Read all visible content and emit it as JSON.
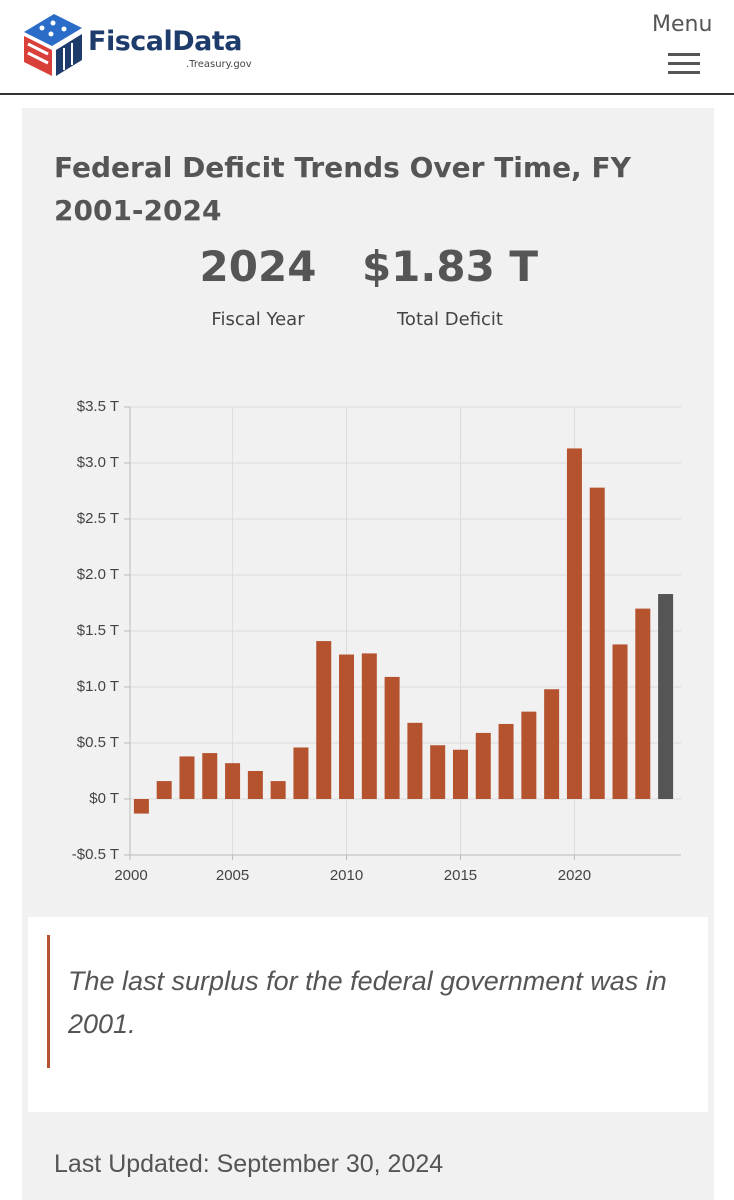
{
  "header": {
    "logo_name": "FiscalData",
    "logo_domain": ".Treasury.gov",
    "menu": "Menu"
  },
  "card": {
    "title": "Federal Deficit Trends Over Time, FY 2001-2024",
    "stats": [
      {
        "value": "2024",
        "label": "Fiscal Year"
      },
      {
        "value": "$1.83 T",
        "label": "Total Deficit"
      }
    ]
  },
  "chart_data": {
    "type": "bar",
    "x": [
      2001,
      2002,
      2003,
      2004,
      2005,
      2006,
      2007,
      2008,
      2009,
      2010,
      2011,
      2012,
      2013,
      2014,
      2015,
      2016,
      2017,
      2018,
      2019,
      2020,
      2021,
      2022,
      2023,
      2024
    ],
    "values": [
      -0.13,
      0.16,
      0.38,
      0.41,
      0.32,
      0.25,
      0.16,
      0.46,
      1.41,
      1.29,
      1.3,
      1.09,
      0.68,
      0.48,
      0.44,
      0.59,
      0.67,
      0.78,
      0.98,
      3.13,
      2.78,
      1.38,
      1.7,
      1.83
    ],
    "colors": [
      "#b5532f",
      "#b5532f",
      "#b5532f",
      "#b5532f",
      "#b5532f",
      "#b5532f",
      "#b5532f",
      "#b5532f",
      "#b5532f",
      "#b5532f",
      "#b5532f",
      "#b5532f",
      "#b5532f",
      "#b5532f",
      "#b5532f",
      "#b5532f",
      "#b5532f",
      "#b5532f",
      "#b5532f",
      "#b5532f",
      "#b5532f",
      "#b5532f",
      "#b5532f",
      "#555555"
    ],
    "xlim": [
      2000.5,
      2024.5
    ],
    "xticks": [
      2000,
      2005,
      2010,
      2015,
      2020
    ],
    "ylim": [
      -0.5,
      3.5
    ],
    "yticks": [
      {
        "value": -0.5,
        "label": "-$0.5 T"
      },
      {
        "value": 0,
        "label": "$0 T"
      },
      {
        "value": 0.5,
        "label": "$0.5 T"
      },
      {
        "value": 1.0,
        "label": "$1.0 T"
      },
      {
        "value": 1.5,
        "label": "$1.5 T"
      },
      {
        "value": 2.0,
        "label": "$2.0 T"
      },
      {
        "value": 2.5,
        "label": "$2.5 T"
      },
      {
        "value": 3.0,
        "label": "$3.0 T"
      },
      {
        "value": 3.5,
        "label": "$3.5 T"
      }
    ],
    "grid": true
  },
  "note": "The last surplus for the federal government was in 2001.",
  "footer": "Last Updated: September 30, 2024"
}
